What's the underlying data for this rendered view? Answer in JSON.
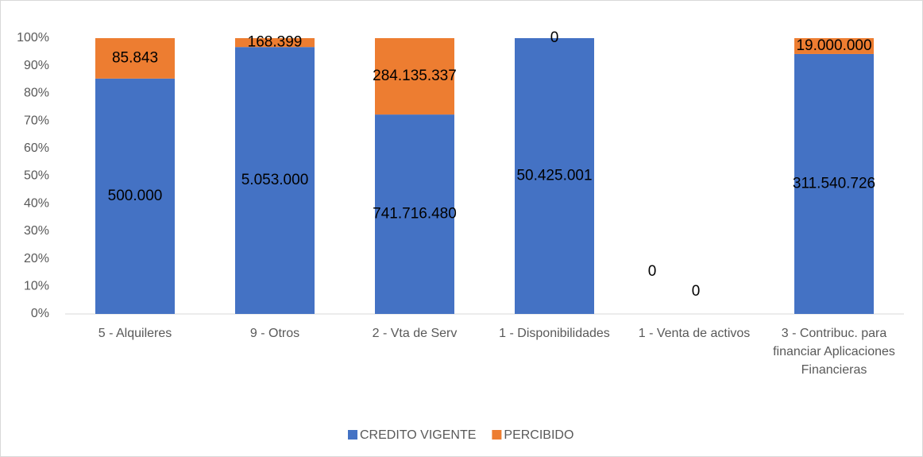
{
  "chart_data": {
    "type": "stacked_bar_percent",
    "categories": [
      "5 - Alquileres",
      "9 - Otros",
      "2 - Vta de Serv",
      "1 - Disponibilidades",
      "1 - Venta de activos",
      "3 - Contribuc. para financiar Aplicaciones Financieras"
    ],
    "series": [
      {
        "name": "CREDITO VIGENTE",
        "color": "#4472c4",
        "values": [
          500000,
          5053000,
          741716480,
          50425001,
          0,
          311540726
        ],
        "value_labels": [
          "500.000",
          "5.053.000",
          "741.716.480",
          "50.425.001",
          "0",
          "311.540.726"
        ]
      },
      {
        "name": "PERCIBIDO",
        "color": "#ed7d31",
        "values": [
          85843,
          168399,
          284135337,
          0,
          0,
          19000000
        ],
        "value_labels": [
          "85.843",
          "168.399",
          "284.135.337",
          "0",
          "0",
          "19.000.000"
        ]
      }
    ],
    "ylim": [
      0,
      100
    ],
    "yticks": [
      {
        "value": 0,
        "label": "0%"
      },
      {
        "value": 10,
        "label": "10%"
      },
      {
        "value": 20,
        "label": "20%"
      },
      {
        "value": 30,
        "label": "30%"
      },
      {
        "value": 40,
        "label": "40%"
      },
      {
        "value": 50,
        "label": "50%"
      },
      {
        "value": 60,
        "label": "60%"
      },
      {
        "value": 70,
        "label": "70%"
      },
      {
        "value": 80,
        "label": "80%"
      },
      {
        "value": 90,
        "label": "90%"
      },
      {
        "value": 100,
        "label": "100%"
      }
    ],
    "legend": "bottom"
  }
}
